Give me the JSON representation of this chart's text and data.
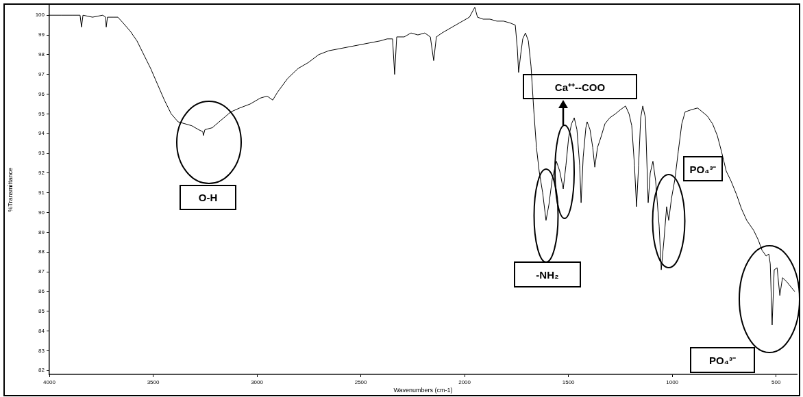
{
  "chart_data": {
    "type": "line",
    "xlabel": "Wavenumbers (cm-1)",
    "ylabel": "%Transmittance",
    "color": "#000000",
    "x": [
      4000,
      3941,
      3891,
      3852,
      3845,
      3838,
      3792,
      3743,
      3729,
      3726,
      3720,
      3693,
      3670,
      3644,
      3611,
      3578,
      3545,
      3512,
      3479,
      3446,
      3413,
      3380,
      3347,
      3314,
      3281,
      3261,
      3258,
      3251,
      3215,
      3182,
      3126,
      3083,
      3033,
      2984,
      2951,
      2924,
      2901,
      2852,
      2802,
      2753,
      2703,
      2654,
      2604,
      2555,
      2505,
      2456,
      2406,
      2373,
      2347,
      2337,
      2327,
      2291,
      2258,
      2225,
      2192,
      2165,
      2149,
      2136,
      2109,
      2076,
      2043,
      2010,
      1977,
      1951,
      1938,
      1911,
      1878,
      1845,
      1812,
      1779,
      1756,
      1746,
      1740,
      1730,
      1720,
      1707,
      1693,
      1680,
      1667,
      1654,
      1641,
      1624,
      1608,
      1594,
      1578,
      1558,
      1542,
      1525,
      1512,
      1499,
      1485,
      1472,
      1459,
      1446,
      1439,
      1429,
      1416,
      1410,
      1396,
      1383,
      1373,
      1360,
      1344,
      1324,
      1301,
      1274,
      1251,
      1225,
      1208,
      1195,
      1182,
      1172,
      1162,
      1152,
      1142,
      1129,
      1116,
      1106,
      1093,
      1080,
      1063,
      1053,
      1040,
      1027,
      1017,
      1004,
      987,
      971,
      954,
      938,
      911,
      878,
      855,
      832,
      806,
      783,
      763,
      740,
      717,
      690,
      667,
      641,
      608,
      585,
      568,
      548,
      535,
      528,
      519,
      509,
      495,
      482,
      469,
      449,
      426,
      410
    ],
    "values": [
      100.0,
      100.0,
      100.0,
      100.0,
      99.4,
      100.0,
      99.9,
      100.0,
      99.9,
      99.4,
      99.9,
      99.9,
      99.9,
      99.6,
      99.2,
      98.7,
      98.0,
      97.3,
      96.5,
      95.7,
      95.0,
      94.6,
      94.5,
      94.4,
      94.2,
      94.1,
      93.9,
      94.2,
      94.3,
      94.6,
      95.1,
      95.3,
      95.5,
      95.8,
      95.9,
      95.7,
      96.1,
      96.8,
      97.3,
      97.6,
      98.0,
      98.2,
      98.3,
      98.4,
      98.5,
      98.6,
      98.7,
      98.8,
      98.8,
      97.0,
      98.9,
      98.9,
      99.1,
      99.0,
      99.1,
      98.9,
      97.7,
      98.9,
      99.1,
      99.3,
      99.5,
      99.7,
      99.9,
      100.4,
      99.9,
      99.8,
      99.8,
      99.7,
      99.7,
      99.6,
      99.5,
      98.3,
      97.1,
      98.0,
      98.8,
      99.1,
      98.7,
      97.4,
      95.2,
      93.3,
      92.1,
      91.0,
      89.6,
      90.4,
      91.7,
      92.6,
      92.1,
      91.2,
      92.4,
      93.8,
      94.5,
      94.8,
      94.2,
      92.4,
      90.5,
      92.8,
      94.3,
      94.6,
      94.2,
      93.3,
      92.3,
      93.3,
      93.8,
      94.5,
      94.8,
      95.0,
      95.2,
      95.4,
      95.0,
      94.4,
      92.4,
      90.3,
      92.4,
      94.8,
      95.4,
      94.8,
      90.5,
      92.0,
      92.6,
      91.6,
      89.3,
      87.1,
      88.6,
      90.3,
      89.6,
      90.7,
      91.7,
      93.1,
      94.5,
      95.1,
      95.2,
      95.3,
      95.1,
      94.9,
      94.5,
      93.9,
      93.1,
      92.1,
      91.6,
      90.9,
      90.2,
      89.6,
      89.1,
      88.6,
      88.1,
      87.8,
      87.9,
      87.4,
      84.3,
      87.1,
      87.2,
      85.8,
      86.7,
      86.5,
      86.2,
      86.0
    ],
    "xlim": [
      4000,
      400
    ],
    "xticks": [
      4000,
      3500,
      3000,
      2500,
      2000,
      1500,
      1000,
      500
    ],
    "ylim": [
      81.8,
      100.5
    ],
    "yticks": [
      82,
      83,
      84,
      85,
      86,
      87,
      88,
      89,
      90,
      91,
      92,
      93,
      94,
      95,
      96,
      97,
      98,
      99,
      100
    ],
    "grid": false,
    "legend": false,
    "marker": "none",
    "line_style": "solid",
    "annotations": [
      "O-H",
      "-NH₂",
      "Ca⁺⁺--COO",
      "PO₄³⁻",
      "PO₄³⁻"
    ]
  }
}
